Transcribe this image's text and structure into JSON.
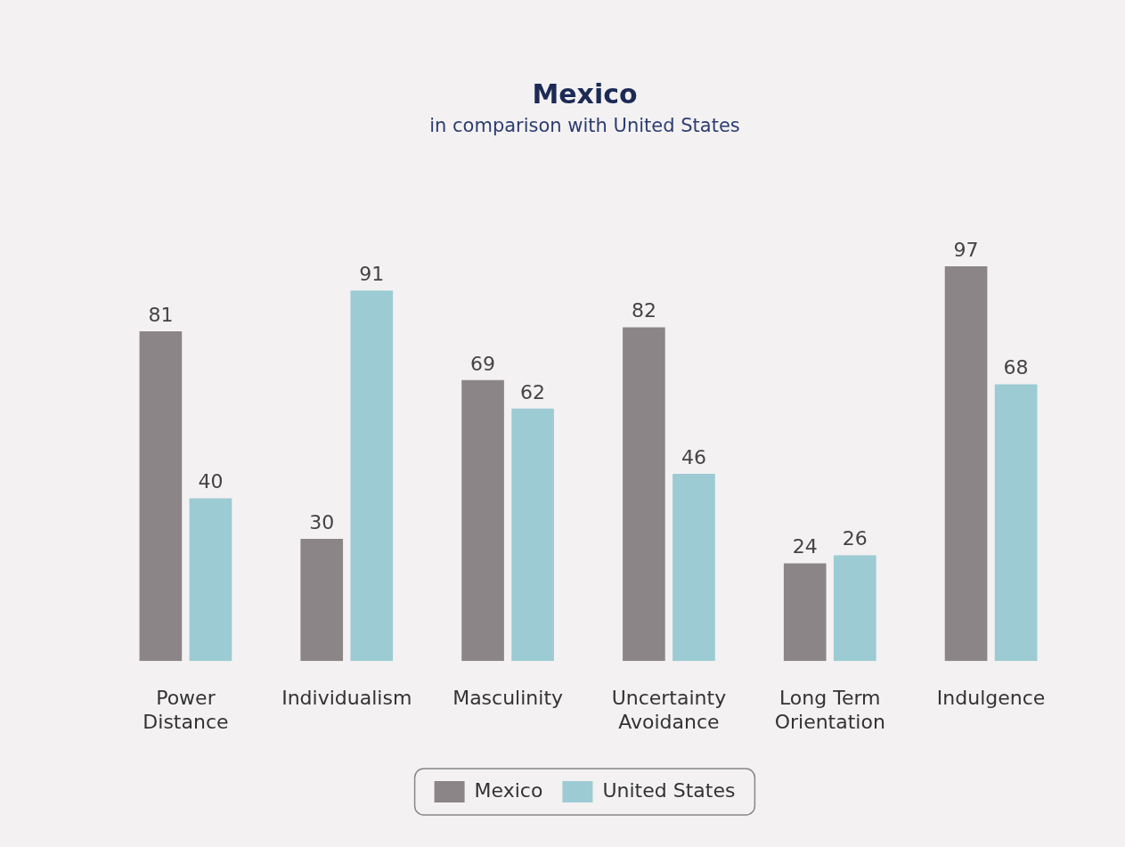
{
  "chart_data": {
    "type": "bar",
    "title": "Mexico",
    "subtitle": "in comparison with United States",
    "categories": [
      "Power Distance",
      "Individualism",
      "Masculinity",
      "Uncertainty Avoidance",
      "Long Term Orientation",
      "Indulgence"
    ],
    "series": [
      {
        "name": "Mexico",
        "color": "#8c8587",
        "values": [
          81,
          30,
          69,
          82,
          24,
          97
        ]
      },
      {
        "name": "United States",
        "color": "#9ccbd3",
        "values": [
          40,
          91,
          62,
          46,
          26,
          68
        ]
      }
    ],
    "data_labels": true,
    "grid": false,
    "legend": "bottom",
    "relative": false
  }
}
